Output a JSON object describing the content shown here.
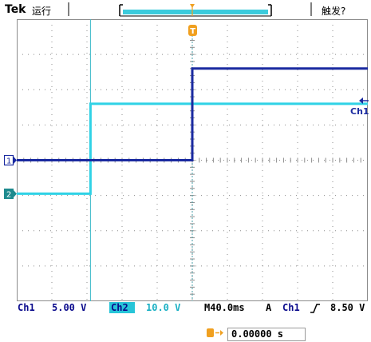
{
  "header": {
    "brand": "Tek",
    "run_state": "运行",
    "trigger_status": "触发?"
  },
  "channels": {
    "ch1_marker": "1",
    "ch2_marker": "2",
    "ch1_right_label": "Ch1",
    "trigger_marker": "T"
  },
  "colors": {
    "ch1": "#1a2aa0",
    "ch2": "#2fd2e6",
    "grid": "#8c8c8c",
    "trigger": "#f0a020"
  },
  "status_bar": {
    "ch1_name": "Ch1",
    "ch1_scale": "5.00 V",
    "ch2_name": "Ch2",
    "ch2_scale": "10.0 V",
    "timebase": "M40.0ms",
    "trigger_mode": "A",
    "trigger_source": "Ch1",
    "trigger_slope_icon": "rising-edge-icon",
    "trigger_level": "8.50 V"
  },
  "trigger_time": {
    "icon": "trigger-position-icon",
    "value": "0.00000 s"
  },
  "chart_data": {
    "type": "line",
    "xlabel": "",
    "ylabel": "",
    "x_divisions": 10,
    "y_divisions": 8,
    "time_per_div_ms": 40,
    "grid": true,
    "series": [
      {
        "name": "Ch1",
        "volts_per_div": 5,
        "points_div": [
          [
            0,
            0.0
          ],
          [
            5.0,
            0.0
          ],
          [
            5.0,
            2.6
          ],
          [
            10.0,
            2.6
          ]
        ]
      },
      {
        "name": "Ch2",
        "volts_per_div": 10,
        "points_div": [
          [
            0,
            -0.95
          ],
          [
            2.1,
            -0.95
          ],
          [
            2.1,
            1.6
          ],
          [
            10.0,
            1.6
          ]
        ]
      }
    ]
  }
}
